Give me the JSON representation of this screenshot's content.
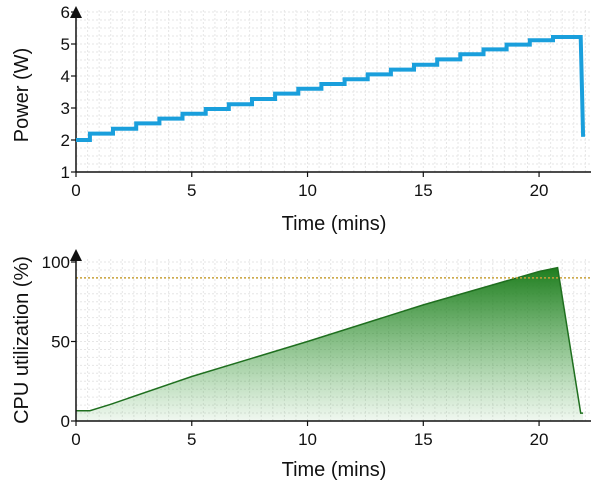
{
  "chart_data": [
    {
      "type": "line",
      "title": "",
      "xlabel": "Time (mins)",
      "ylabel": "Power (W)",
      "xlim": [
        0,
        22.2
      ],
      "ylim": [
        1,
        6
      ],
      "xticks": [
        0,
        5,
        10,
        15,
        20
      ],
      "yticks": [
        1,
        2,
        3,
        4,
        5,
        6
      ],
      "grid": true,
      "color": "#1a9fdc",
      "series": [
        {
          "x": [
            0,
            0.6,
            0.6,
            1.6,
            1.6,
            2.6,
            2.6,
            3.6,
            3.6,
            4.6,
            4.6,
            5.6,
            5.6,
            6.6,
            6.6,
            7.6,
            7.6,
            8.6,
            8.6,
            9.6,
            9.6,
            10.6,
            10.6,
            11.6,
            11.6,
            12.6,
            12.6,
            13.6,
            13.6,
            14.6,
            14.6,
            15.6,
            15.6,
            16.6,
            16.6,
            17.6,
            17.6,
            18.6,
            18.6,
            19.6,
            19.6,
            20.6,
            20.6,
            21.6,
            21.8,
            21.9
          ],
          "y": [
            2.0,
            2.0,
            2.2,
            2.2,
            2.35,
            2.35,
            2.52,
            2.52,
            2.67,
            2.67,
            2.82,
            2.82,
            2.97,
            2.97,
            3.12,
            3.12,
            3.28,
            3.28,
            3.45,
            3.45,
            3.6,
            3.6,
            3.75,
            3.75,
            3.9,
            3.9,
            4.05,
            4.05,
            4.2,
            4.2,
            4.35,
            4.35,
            4.52,
            4.52,
            4.68,
            4.68,
            4.83,
            4.83,
            4.98,
            4.98,
            5.12,
            5.12,
            5.22,
            5.22,
            5.22,
            2.1
          ]
        }
      ]
    },
    {
      "type": "area",
      "title": "",
      "xlabel": "Time (mins)",
      "ylabel": "CPU utilization (%)",
      "xlim": [
        0,
        22.2
      ],
      "ylim": [
        0,
        100
      ],
      "xticks": [
        0,
        5,
        10,
        15,
        20
      ],
      "yticks": [
        0,
        50,
        100
      ],
      "grid": true,
      "threshold": 90,
      "threshold_color": "#c8a038",
      "color": "#1f7a1f",
      "series": [
        {
          "x": [
            0,
            0.6,
            1.5,
            5,
            10,
            15,
            20,
            20.8,
            21.8,
            21.9
          ],
          "y": [
            6.5,
            6.5,
            10.5,
            28,
            50,
            73,
            94,
            96.5,
            5,
            5
          ]
        }
      ]
    }
  ]
}
